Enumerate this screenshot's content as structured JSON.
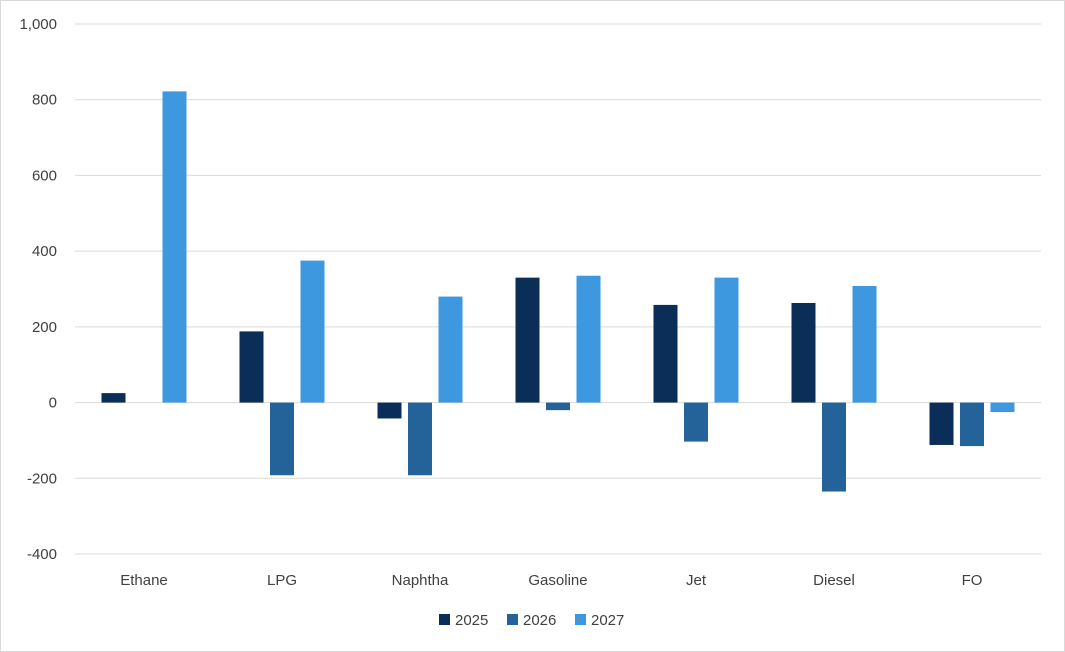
{
  "chart_data": {
    "type": "bar",
    "title": "",
    "xlabel": "",
    "ylabel": "",
    "categories": [
      "Ethane",
      "LPG",
      "Naphtha",
      "Gasoline",
      "Jet",
      "Diesel",
      "FO"
    ],
    "series": [
      {
        "name": "2025",
        "color": "#0b2e59",
        "values": [
          25,
          188,
          -42,
          330,
          258,
          263,
          -112
        ]
      },
      {
        "name": "2026",
        "color": "#23639a",
        "values": [
          0,
          -192,
          -192,
          -20,
          -103,
          -235,
          -115
        ]
      },
      {
        "name": "2027",
        "color": "#3d98e0",
        "values": [
          822,
          375,
          280,
          335,
          330,
          308,
          -25
        ]
      }
    ],
    "ylim": [
      -400,
      1000
    ],
    "yticks": [
      1000,
      800,
      600,
      400,
      200,
      0,
      -200,
      -400
    ],
    "ytick_labels": [
      "1,000",
      "800",
      "600",
      "400",
      "200",
      "0",
      "-200",
      "-400"
    ],
    "grid": true,
    "legend": "bottom-center"
  }
}
